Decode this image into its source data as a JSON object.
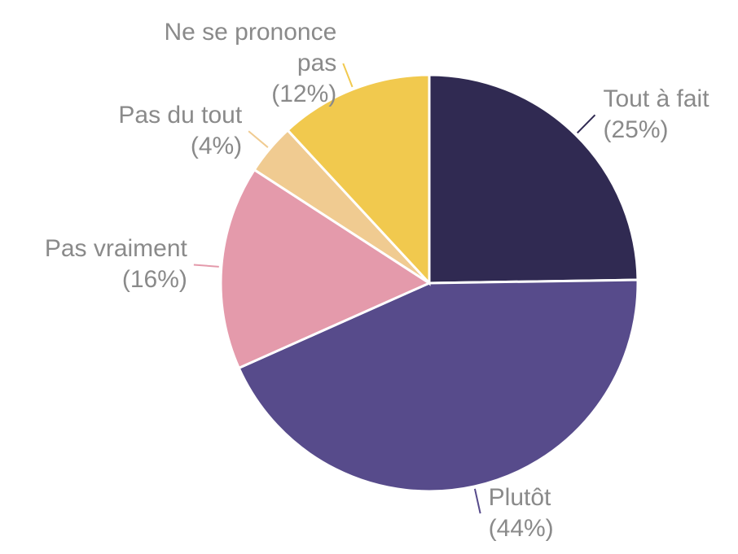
{
  "chart_data": {
    "type": "pie",
    "categories": [
      "Tout à fait",
      "Plutôt",
      "Pas vraiment",
      "Pas du tout",
      "Ne se prononce pas"
    ],
    "values": [
      25,
      44,
      16,
      4,
      12
    ],
    "value_labels": [
      "(25%)",
      "(44%)",
      "(16%)",
      "(4%)",
      "(12%)"
    ],
    "colors": [
      "#302a52",
      "#574b8b",
      "#e49aab",
      "#f0cb91",
      "#f1c94e"
    ]
  }
}
